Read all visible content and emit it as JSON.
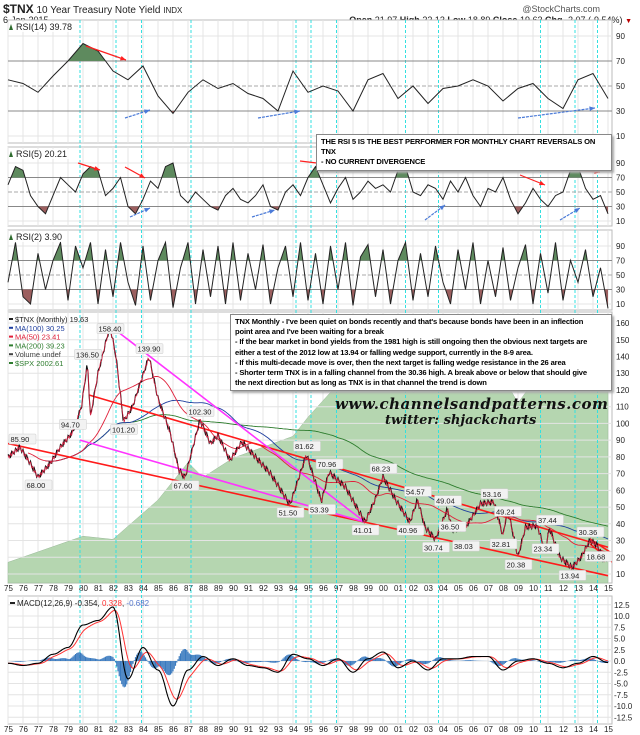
{
  "header": {
    "symbol": "$TNX",
    "name": "10 Year Treasury Note Yield",
    "exchange": "INDX",
    "date": "6-Jan-2015",
    "brand": "@StockCharts.com",
    "open_label": "Open",
    "open": "21.97",
    "high_label": "High",
    "high": "22.13",
    "low_label": "Low",
    "low": "18.89",
    "close_label": "Close",
    "close": "19.63",
    "chg_label": "Chg",
    "chg": "-2.07 (-9.54%)"
  },
  "notes": {
    "rsi5_note": [
      "THE RSI 5 IS THE BEST PERFORMER FOR MONTHLY CHART REVERSALS ON TNX",
      "- NO CURRENT DIVERGENCE"
    ],
    "main_note": [
      "TNX Monthly - I've been quiet on bonds recently and that's because bonds have been in an inflection",
      "point area and I've been waiting for a break",
      "- If the bear market in bond yields from the 1981 high is still ongoing then the obvious next targets are",
      "either a test of the 2012 low at 13.94 or falling wedge support, currently in the 8-9 area.",
      "- If this multi-decade move is over, then the next target is falling wedge resistance in the 26 area",
      "- Shorter term TNX is in a falling channel from the 30.36 high. A break above or below that should give",
      "the next direction but as long as TNX is in that channel the trend is down"
    ],
    "website": "www.channelsandpatterns.com",
    "twitter": "twitter: shjackcharts"
  },
  "colors": {
    "ma100": "#1f3f9f",
    "ma50": "#e0203a",
    "ma200": "#2e7d2e",
    "spx_area": "#b5d6b0",
    "trend_red": "#ff1a1a",
    "trend_magenta": "#ff33ff",
    "cycle_line": "#33e0e0",
    "rsi_over": "#5e8a5e",
    "rsi_under": "#9c5f5f",
    "macd": "#000000",
    "signal": "#ff3333",
    "hist": "#3a7abf"
  },
  "chart_data": [
    {
      "type": "line",
      "panel": "RSI(14)",
      "legend": "RSI(14) 39.78",
      "x_start": 1975,
      "x_end": 2015,
      "ylim": [
        0,
        100
      ],
      "yticks": [
        "90",
        "70",
        "50",
        "30",
        "10"
      ],
      "values": [
        55,
        52,
        45,
        58,
        70,
        84,
        78,
        62,
        55,
        66,
        42,
        28,
        45,
        55,
        48,
        52,
        44,
        40,
        30,
        62,
        45,
        50,
        46,
        30,
        55,
        60,
        40,
        50,
        36,
        48,
        50,
        55,
        50,
        38,
        48,
        52,
        40,
        32,
        55,
        60,
        40
      ]
    },
    {
      "type": "line",
      "panel": "RSI(5)",
      "legend": "RSI(5) 20.21",
      "x_start": 1975,
      "x_end": 2015,
      "ylim": [
        0,
        100
      ],
      "yticks": [
        "90",
        "70",
        "50",
        "30",
        "10"
      ],
      "values": [
        60,
        85,
        80,
        45,
        30,
        20,
        45,
        70,
        60,
        50,
        75,
        85,
        80,
        45,
        55,
        70,
        30,
        20,
        40,
        65,
        55,
        85,
        90,
        45,
        35,
        50,
        40,
        30,
        25,
        45,
        55,
        40,
        35,
        45,
        60,
        30,
        25,
        50,
        60,
        45,
        70,
        85,
        60,
        35,
        55,
        70,
        40,
        50,
        65,
        55,
        60,
        50,
        80,
        85,
        50,
        45,
        60,
        55,
        40,
        65,
        50,
        70,
        45,
        30,
        55,
        50,
        70,
        40,
        20,
        35,
        55,
        40,
        30,
        45,
        50,
        80,
        85,
        55,
        40,
        45,
        20
      ]
    },
    {
      "type": "line",
      "panel": "RSI(2)",
      "legend": "RSI(2) 3.90",
      "x_start": 1975,
      "x_end": 2015,
      "ylim": [
        0,
        100
      ],
      "yticks": [
        "90",
        "70",
        "50",
        "30",
        "10"
      ],
      "values": [
        40,
        95,
        20,
        10,
        80,
        30,
        70,
        95,
        15,
        90,
        60,
        95,
        10,
        85,
        20,
        95,
        40,
        8,
        90,
        15,
        70,
        95,
        5,
        60,
        95,
        10,
        85,
        20,
        90,
        10,
        95,
        15,
        80,
        30,
        92,
        10,
        60,
        90,
        20,
        95,
        15,
        80,
        10,
        90,
        30,
        95,
        8,
        75,
        92,
        20,
        85,
        10,
        70,
        95,
        15,
        80,
        20,
        90,
        40,
        10,
        85,
        30,
        95,
        10,
        70,
        20,
        88,
        15,
        60,
        92,
        10,
        80,
        25,
        95,
        15,
        70,
        40,
        85,
        20,
        60,
        4
      ]
    },
    {
      "type": "line",
      "panel": "$TNX (Monthly)",
      "legend": [
        "$TNX (Monthly) 19.63",
        "MA(100) 30.25",
        "MA(50) 23.41",
        "MA(200) 39.23",
        "Volume undef",
        "$SPX 2002.61"
      ],
      "ylim": [
        10,
        160
      ],
      "yticks": [
        "160",
        "150",
        "140",
        "130",
        "120",
        "110",
        "100",
        "90",
        "80",
        "70",
        "60",
        "50",
        "40",
        "30",
        "20",
        "10"
      ],
      "xticks": [
        "75",
        "76",
        "77",
        "78",
        "79",
        "80",
        "81",
        "82",
        "83",
        "84",
        "85",
        "86",
        "87",
        "88",
        "89",
        "90",
        "91",
        "92",
        "93",
        "94",
        "95",
        "96",
        "97",
        "98",
        "99",
        "00",
        "01",
        "02",
        "03",
        "04",
        "05",
        "06",
        "07",
        "08",
        "09",
        "10",
        "11",
        "12",
        "13",
        "14",
        "15"
      ],
      "price": [
        [
          1975,
          80
        ],
        [
          1975.8,
          85.9
        ],
        [
          1976.5,
          76
        ],
        [
          1977,
          68
        ],
        [
          1977.8,
          76
        ],
        [
          1978.5,
          86
        ],
        [
          1979.3,
          94.7
        ],
        [
          1979.9,
          110
        ],
        [
          1980.3,
          136.5
        ],
        [
          1980.5,
          104
        ],
        [
          1981.0,
          130
        ],
        [
          1981.8,
          158.4
        ],
        [
          1982.2,
          140
        ],
        [
          1982.7,
          101.2
        ],
        [
          1983.3,
          110
        ],
        [
          1984.4,
          139.9
        ],
        [
          1985,
          115
        ],
        [
          1985.8,
          95
        ],
        [
          1986.4,
          72
        ],
        [
          1986.8,
          67.6
        ],
        [
          1987.8,
          102.3
        ],
        [
          1988.5,
          88
        ],
        [
          1989.0,
          93
        ],
        [
          1989.8,
          78
        ],
        [
          1990.6,
          89
        ],
        [
          1991.5,
          80
        ],
        [
          1992.5,
          70
        ],
        [
          1993.8,
          51.5
        ],
        [
          1994.9,
          81.62
        ],
        [
          1995.9,
          53.39
        ],
        [
          1996.4,
          70.96
        ],
        [
          1997.5,
          62
        ],
        [
          1998.8,
          41.01
        ],
        [
          1999.5,
          55
        ],
        [
          2000.0,
          68.23
        ],
        [
          2000.8,
          55
        ],
        [
          2001.8,
          40.96
        ],
        [
          2002.3,
          54.57
        ],
        [
          2002.8,
          38
        ],
        [
          2003.5,
          30.74
        ],
        [
          2004.3,
          49.04
        ],
        [
          2004.6,
          36.5
        ],
        [
          2005.5,
          38.03
        ],
        [
          2006.5,
          52
        ],
        [
          2007.4,
          53.16
        ],
        [
          2008.0,
          32.81
        ],
        [
          2008.3,
          49.24
        ],
        [
          2009.0,
          20.38
        ],
        [
          2009.5,
          38
        ],
        [
          2010.3,
          39
        ],
        [
          2010.8,
          23.34
        ],
        [
          2011.1,
          37.44
        ],
        [
          2011.8,
          20
        ],
        [
          2012.6,
          13.94
        ],
        [
          2013.2,
          20
        ],
        [
          2013.8,
          30.36
        ],
        [
          2014.3,
          27
        ],
        [
          2014.7,
          18.68
        ],
        [
          2015.0,
          19.63
        ]
      ],
      "annotations": [
        [
          1975.8,
          "85.90",
          85.9
        ],
        [
          1977,
          "68.00",
          68
        ],
        [
          1979.3,
          "94.70",
          94.7
        ],
        [
          1980.3,
          "136.50",
          136.5
        ],
        [
          1981.8,
          "158.40",
          158.4
        ],
        [
          1982.7,
          "101.20",
          101.2
        ],
        [
          1984.4,
          "139.90",
          139.9
        ],
        [
          1986.8,
          "67.60",
          67.6
        ],
        [
          1987.8,
          "102.30",
          102.3
        ],
        [
          1993.8,
          "51.50",
          51.5
        ],
        [
          1994.9,
          "81.62",
          81.62
        ],
        [
          1995.9,
          "53.39",
          53.39
        ],
        [
          1996.4,
          "70.96",
          70.96
        ],
        [
          1998.8,
          "41.01",
          41.01
        ],
        [
          2000.0,
          "68.23",
          68.23
        ],
        [
          2001.8,
          "40.96",
          40.96
        ],
        [
          2002.3,
          "54.57",
          54.57
        ],
        [
          2003.5,
          "30.74",
          30.74
        ],
        [
          2004.3,
          "49.04",
          49.04
        ],
        [
          2004.6,
          "36.50",
          36.5
        ],
        [
          2005.5,
          "38.03",
          38.03
        ],
        [
          2007.4,
          "53.16",
          53.16
        ],
        [
          2008.0,
          "32.81",
          32.81
        ],
        [
          2008.3,
          "49.24",
          49.24
        ],
        [
          2009.0,
          "20.38",
          20.38
        ],
        [
          2010.8,
          "23.34",
          23.34
        ],
        [
          2011.1,
          "37.44",
          37.44
        ],
        [
          2012.6,
          "13.94",
          13.94
        ],
        [
          2013.8,
          "30.36",
          30.36
        ],
        [
          2014.7,
          "18.68",
          18.68
        ]
      ],
      "spx": [
        [
          1975,
          80
        ],
        [
          1980,
          115
        ],
        [
          1982,
          110
        ],
        [
          1985,
          190
        ],
        [
          1987,
          320
        ],
        [
          1988,
          260
        ],
        [
          1990,
          340
        ],
        [
          1994,
          460
        ],
        [
          1995,
          600
        ],
        [
          1997,
          950
        ],
        [
          1998,
          1150
        ],
        [
          2000,
          1480
        ],
        [
          2002,
          850
        ],
        [
          2003,
          900
        ],
        [
          2007,
          1520
        ],
        [
          2009,
          730
        ],
        [
          2011,
          1300
        ],
        [
          2012,
          1400
        ],
        [
          2013,
          1800
        ],
        [
          2014,
          2050
        ],
        [
          2015,
          2002.61
        ]
      ],
      "trendlines": {
        "red": [
          [
            [
              1975,
              88
            ],
            [
              2015,
              9
            ]
          ],
          [
            [
              1980.4,
              117
            ],
            [
              2015,
              26
            ]
          ],
          [
            [
              2013.8,
              31
            ],
            [
              2016,
              18
            ]
          ],
          [
            [
              2013.8,
              28
            ],
            [
              2016,
              12
            ]
          ]
        ],
        "magenta": [
          [
            [
              1981.8,
              158.4
            ],
            [
              1998.8,
              41
            ]
          ],
          [
            [
              1979.8,
              90
            ],
            [
              1998.8,
              41
            ]
          ]
        ]
      },
      "cycle_years": [
        1979.8,
        1982.2,
        1983.9,
        1987.2,
        1994.2,
        1995.2,
        1996.9,
        2001.5,
        2003.7,
        2010.5,
        2012.8,
        2014.3
      ]
    },
    {
      "type": "line",
      "panel": "MACD(12,26,9)",
      "legend": {
        "name": "MACD(12,26,9)",
        "macd": "-0.354",
        "signal": "0.328",
        "hist": "-0.682"
      },
      "ylim": [
        -12.5,
        12.5
      ],
      "yticks": [
        "12.5",
        "10.0",
        "7.5",
        "5.0",
        "2.5",
        "0.0",
        "-2.5",
        "-5.0",
        "-7.5",
        "-10.0",
        "-12.5"
      ],
      "x_start": 1975,
      "x_end": 2015,
      "macd": [
        -0.5,
        -1,
        -0.5,
        1.5,
        3,
        8,
        9,
        12,
        -4,
        3,
        -2,
        -10,
        -2,
        1,
        -1,
        0.5,
        -1,
        -1.5,
        -2.5,
        1.5,
        0.5,
        -1,
        0.5,
        -2.5,
        0.5,
        2,
        -1.5,
        0,
        -2,
        0.5,
        0.5,
        1,
        1,
        -2,
        0,
        0.5,
        -0.5,
        -1.5,
        -0.5,
        1,
        -0.35
      ]
    }
  ]
}
